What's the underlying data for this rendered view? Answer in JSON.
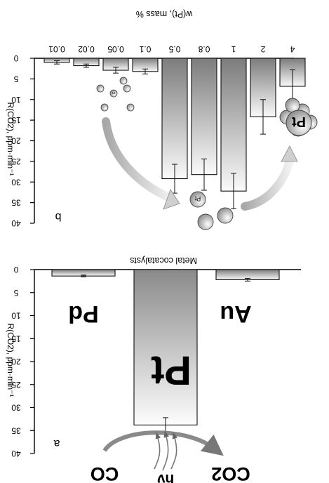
{
  "chart_data": [
    {
      "type": "bar",
      "panel_label": "b",
      "title": "w(Pt), mass %",
      "ylabel": "R(CO2), ppm·min⁻¹",
      "ylim": [
        0,
        40
      ],
      "yticks": [
        0,
        5,
        10,
        15,
        20,
        25,
        30,
        35,
        40
      ],
      "categories": [
        "0.01",
        "0.02",
        "0.05",
        "0.1",
        "0.5",
        "0.8",
        "1",
        "2",
        "4"
      ],
      "values": [
        1.0,
        1.8,
        2.9,
        3.2,
        29.2,
        28.2,
        32.2,
        14.2,
        6.8
      ],
      "errors": [
        0.4,
        0.4,
        0.7,
        0.6,
        3.5,
        3.8,
        4.3,
        4.2,
        4.0
      ],
      "annotations": {
        "small_particle": "Pt",
        "mid_particle": "Pt",
        "cluster_particle": "Pt"
      }
    },
    {
      "type": "bar",
      "panel_label": "a",
      "title": "Metal cocatalysts",
      "ylabel": "R(CO2), ppm·min⁻¹",
      "ylim": [
        0,
        40
      ],
      "yticks": [
        0,
        5,
        10,
        15,
        20,
        25,
        30,
        35,
        40
      ],
      "categories": [
        "Au",
        "Pt",
        "Pd"
      ],
      "values": [
        1.4,
        33.8,
        2.2
      ],
      "errors": [
        0.2,
        1.6,
        0.3
      ],
      "annotations": {
        "reactant": "CO",
        "light": "hν",
        "product": "CO2"
      }
    }
  ]
}
